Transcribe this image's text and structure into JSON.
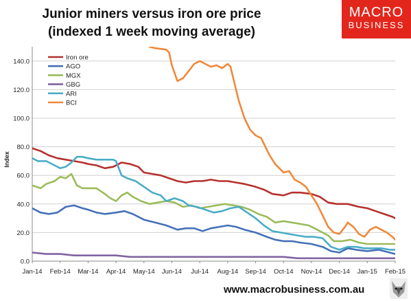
{
  "header": {
    "title_line1": "Junior miners versus iron ore price",
    "title_line2": "(indexed 1 week moving average)"
  },
  "logo": {
    "line1": "MACRO",
    "line2": "BUSINESS"
  },
  "footer": {
    "url": "www.macrobusiness.com.au"
  },
  "colors": {
    "brand_red": "#e3261c"
  },
  "chart_data": {
    "type": "line",
    "title": "Junior miners versus iron ore price (indexed 1 week moving average)",
    "ylabel": "Index",
    "xlabel": "",
    "ylim": [
      0,
      150
    ],
    "yticks": [
      0,
      20,
      40,
      60,
      80,
      100,
      120,
      140
    ],
    "ytick_labels": [
      "0.0",
      "20.0",
      "40.0",
      "60.0",
      "80.0",
      "100.0",
      "120.0",
      "140.0"
    ],
    "x_tick_labels": [
      "Jan-14",
      "Feb-14",
      "Mar-14",
      "Apr-14",
      "May-14",
      "Jun-14",
      "Jul-14",
      "Aug-14",
      "Sep-14",
      "Oct-14",
      "Nov-14",
      "Dec-14",
      "Jan-15",
      "Feb-15"
    ],
    "x_unit": "month index (0 = Jan-14)",
    "grid": "horizontal",
    "legend": "top-left",
    "series": [
      {
        "name": "Iron ore",
        "color": "#b5302d",
        "points": [
          [
            0.0,
            79
          ],
          [
            0.3,
            77
          ],
          [
            0.6,
            74
          ],
          [
            0.9,
            72
          ],
          [
            1.2,
            71
          ],
          [
            1.5,
            70
          ],
          [
            1.8,
            69
          ],
          [
            2.0,
            68
          ],
          [
            2.3,
            67
          ],
          [
            2.6,
            65
          ],
          [
            2.9,
            66
          ],
          [
            3.2,
            69
          ],
          [
            3.5,
            68
          ],
          [
            3.8,
            66
          ],
          [
            4.0,
            62
          ],
          [
            4.3,
            61
          ],
          [
            4.6,
            60
          ],
          [
            4.9,
            58
          ],
          [
            5.2,
            56
          ],
          [
            5.5,
            55
          ],
          [
            5.8,
            56
          ],
          [
            6.1,
            56
          ],
          [
            6.4,
            57
          ],
          [
            6.7,
            56
          ],
          [
            7.0,
            56
          ],
          [
            7.3,
            55
          ],
          [
            7.6,
            54
          ],
          [
            8.0,
            52
          ],
          [
            8.3,
            50
          ],
          [
            8.6,
            47
          ],
          [
            9.0,
            46
          ],
          [
            9.3,
            48
          ],
          [
            9.6,
            48
          ],
          [
            10.0,
            47
          ],
          [
            10.3,
            45
          ],
          [
            10.6,
            41
          ],
          [
            10.9,
            40
          ],
          [
            11.3,
            40
          ],
          [
            11.7,
            38
          ],
          [
            12.0,
            37
          ],
          [
            12.3,
            35
          ],
          [
            12.6,
            33
          ],
          [
            12.9,
            31
          ],
          [
            13.0,
            30
          ]
        ]
      },
      {
        "name": "AGO",
        "color": "#4470b6",
        "points": [
          [
            0.0,
            37
          ],
          [
            0.3,
            34
          ],
          [
            0.6,
            33
          ],
          [
            0.9,
            34
          ],
          [
            1.2,
            38
          ],
          [
            1.5,
            39
          ],
          [
            1.8,
            37
          ],
          [
            2.0,
            36
          ],
          [
            2.3,
            34
          ],
          [
            2.6,
            33
          ],
          [
            3.0,
            34
          ],
          [
            3.3,
            35
          ],
          [
            3.6,
            33
          ],
          [
            4.0,
            29
          ],
          [
            4.4,
            27
          ],
          [
            4.8,
            25
          ],
          [
            5.2,
            22
          ],
          [
            5.5,
            23
          ],
          [
            5.8,
            23
          ],
          [
            6.1,
            21
          ],
          [
            6.4,
            23
          ],
          [
            6.7,
            24
          ],
          [
            7.0,
            25
          ],
          [
            7.3,
            24
          ],
          [
            7.6,
            22
          ],
          [
            8.0,
            20
          ],
          [
            8.4,
            17
          ],
          [
            8.7,
            15
          ],
          [
            9.0,
            14
          ],
          [
            9.3,
            14
          ],
          [
            9.6,
            13
          ],
          [
            10.0,
            12
          ],
          [
            10.4,
            10
          ],
          [
            10.7,
            7
          ],
          [
            11.0,
            6
          ],
          [
            11.3,
            9
          ],
          [
            11.6,
            8
          ],
          [
            12.0,
            7
          ],
          [
            12.4,
            8
          ],
          [
            12.8,
            6
          ],
          [
            13.0,
            5
          ]
        ]
      },
      {
        "name": "MGX",
        "color": "#9bbb59",
        "points": [
          [
            0.0,
            53
          ],
          [
            0.3,
            51
          ],
          [
            0.5,
            54
          ],
          [
            0.8,
            56
          ],
          [
            1.0,
            59
          ],
          [
            1.2,
            58
          ],
          [
            1.4,
            61
          ],
          [
            1.6,
            53
          ],
          [
            1.8,
            51
          ],
          [
            2.0,
            51
          ],
          [
            2.3,
            51
          ],
          [
            2.6,
            47
          ],
          [
            2.8,
            44
          ],
          [
            3.0,
            42
          ],
          [
            3.2,
            46
          ],
          [
            3.4,
            48
          ],
          [
            3.6,
            45
          ],
          [
            3.9,
            42
          ],
          [
            4.2,
            40
          ],
          [
            4.5,
            41
          ],
          [
            4.8,
            42
          ],
          [
            5.1,
            41
          ],
          [
            5.4,
            38
          ],
          [
            5.7,
            39
          ],
          [
            6.0,
            37
          ],
          [
            6.3,
            38
          ],
          [
            6.6,
            39
          ],
          [
            6.9,
            40
          ],
          [
            7.2,
            39
          ],
          [
            7.5,
            38
          ],
          [
            7.8,
            36
          ],
          [
            8.1,
            33
          ],
          [
            8.4,
            31
          ],
          [
            8.7,
            27
          ],
          [
            9.0,
            28
          ],
          [
            9.3,
            27
          ],
          [
            9.6,
            26
          ],
          [
            9.9,
            25
          ],
          [
            10.2,
            22
          ],
          [
            10.6,
            18
          ],
          [
            10.8,
            14
          ],
          [
            11.1,
            14
          ],
          [
            11.4,
            15
          ],
          [
            11.7,
            13
          ],
          [
            12.0,
            12
          ],
          [
            12.4,
            12
          ],
          [
            12.8,
            12
          ],
          [
            13.0,
            12
          ]
        ]
      },
      {
        "name": "GBG",
        "color": "#8064a2",
        "points": [
          [
            0.0,
            6
          ],
          [
            0.5,
            5
          ],
          [
            1.0,
            5
          ],
          [
            1.5,
            4
          ],
          [
            2.0,
            4
          ],
          [
            2.5,
            4
          ],
          [
            3.0,
            4
          ],
          [
            3.5,
            3
          ],
          [
            4.0,
            3
          ],
          [
            4.5,
            3
          ],
          [
            5.0,
            3
          ],
          [
            5.5,
            3
          ],
          [
            6.0,
            3
          ],
          [
            6.5,
            3
          ],
          [
            7.0,
            3
          ],
          [
            7.5,
            3
          ],
          [
            8.0,
            3
          ],
          [
            8.5,
            3
          ],
          [
            9.0,
            3
          ],
          [
            9.5,
            2
          ],
          [
            10.0,
            2
          ],
          [
            10.5,
            2
          ],
          [
            11.0,
            2
          ],
          [
            11.5,
            2
          ],
          [
            12.0,
            2
          ],
          [
            12.5,
            2
          ],
          [
            13.0,
            2
          ]
        ]
      },
      {
        "name": "ARI",
        "color": "#4aacc6",
        "points": [
          [
            0.0,
            72
          ],
          [
            0.2,
            70
          ],
          [
            0.5,
            70
          ],
          [
            0.8,
            67
          ],
          [
            1.0,
            65
          ],
          [
            1.2,
            66
          ],
          [
            1.4,
            69
          ],
          [
            1.6,
            73
          ],
          [
            1.8,
            73
          ],
          [
            2.0,
            72
          ],
          [
            2.3,
            71
          ],
          [
            2.6,
            71
          ],
          [
            2.9,
            71
          ],
          [
            3.0,
            70
          ],
          [
            3.2,
            60
          ],
          [
            3.4,
            58
          ],
          [
            3.7,
            56
          ],
          [
            4.0,
            52
          ],
          [
            4.3,
            48
          ],
          [
            4.6,
            46
          ],
          [
            4.8,
            42
          ],
          [
            5.1,
            44
          ],
          [
            5.4,
            42
          ],
          [
            5.6,
            39
          ],
          [
            5.9,
            38
          ],
          [
            6.2,
            36
          ],
          [
            6.5,
            34
          ],
          [
            6.8,
            35
          ],
          [
            7.1,
            37
          ],
          [
            7.4,
            38
          ],
          [
            7.7,
            34
          ],
          [
            8.0,
            30
          ],
          [
            8.3,
            25
          ],
          [
            8.6,
            21
          ],
          [
            8.9,
            20
          ],
          [
            9.2,
            19
          ],
          [
            9.5,
            18
          ],
          [
            9.8,
            17
          ],
          [
            10.1,
            17
          ],
          [
            10.4,
            16
          ],
          [
            10.7,
            10
          ],
          [
            11.0,
            8
          ],
          [
            11.3,
            10
          ],
          [
            11.6,
            10
          ],
          [
            11.9,
            9
          ],
          [
            12.2,
            9
          ],
          [
            12.5,
            9
          ],
          [
            12.8,
            8
          ],
          [
            13.0,
            8
          ]
        ]
      },
      {
        "name": "BCI",
        "color": "#f0883a",
        "points": [
          [
            4.2,
            150
          ],
          [
            4.4,
            149
          ],
          [
            4.8,
            148
          ],
          [
            4.9,
            146
          ],
          [
            5.0,
            137
          ],
          [
            5.2,
            126
          ],
          [
            5.4,
            128
          ],
          [
            5.6,
            133
          ],
          [
            5.8,
            138
          ],
          [
            6.0,
            140
          ],
          [
            6.2,
            138
          ],
          [
            6.4,
            136
          ],
          [
            6.6,
            137
          ],
          [
            6.8,
            135
          ],
          [
            7.0,
            138
          ],
          [
            7.1,
            136
          ],
          [
            7.2,
            128
          ],
          [
            7.4,
            112
          ],
          [
            7.6,
            100
          ],
          [
            7.8,
            92
          ],
          [
            8.0,
            88
          ],
          [
            8.2,
            86
          ],
          [
            8.4,
            78
          ],
          [
            8.5,
            74
          ],
          [
            8.7,
            68
          ],
          [
            8.9,
            64
          ],
          [
            9.0,
            62
          ],
          [
            9.2,
            63
          ],
          [
            9.4,
            57
          ],
          [
            9.6,
            55
          ],
          [
            9.8,
            52
          ],
          [
            10.0,
            46
          ],
          [
            10.2,
            40
          ],
          [
            10.4,
            32
          ],
          [
            10.6,
            24
          ],
          [
            10.8,
            20
          ],
          [
            11.0,
            19
          ],
          [
            11.2,
            24
          ],
          [
            11.3,
            27
          ],
          [
            11.5,
            24
          ],
          [
            11.7,
            19
          ],
          [
            11.9,
            17
          ],
          [
            12.1,
            22
          ],
          [
            12.3,
            24
          ],
          [
            12.5,
            22
          ],
          [
            12.7,
            20
          ],
          [
            12.9,
            17
          ],
          [
            13.0,
            15
          ]
        ]
      }
    ]
  }
}
